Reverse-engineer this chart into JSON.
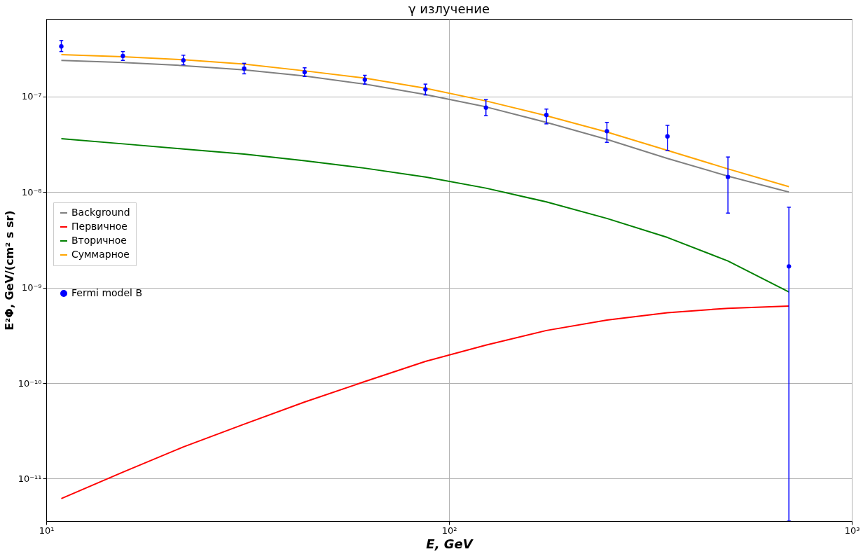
{
  "chart_data": {
    "type": "line",
    "title": "γ излучение",
    "xlabel": "E, GeV",
    "ylabel": "E²Φ, GeV/(cm² s sr)",
    "log": "xy",
    "grid": true,
    "legend": "left",
    "line_style": "solid",
    "xlim": [
      10,
      1000
    ],
    "xticks": [
      {
        "value": 10,
        "label": "10¹"
      },
      {
        "value": 100,
        "label": "10²"
      },
      {
        "value": 1000,
        "label": "10³"
      }
    ],
    "ylim": [
      3.6e-12,
      6.5e-07
    ],
    "yticks": [
      {
        "value": 1e-11,
        "label": "10⁻¹¹"
      },
      {
        "value": 1e-10,
        "label": "10⁻¹⁰"
      },
      {
        "value": 1e-09,
        "label": "10⁻⁹"
      },
      {
        "value": 1e-08,
        "label": "10⁻⁸"
      },
      {
        "value": 1e-07,
        "label": "10⁻⁷"
      }
    ],
    "x": [
      10.9,
      15.5,
      21.9,
      31.0,
      43.8,
      61.8,
      87.4,
      123.5,
      174.5,
      246.6,
      348.6,
      492.6,
      698
    ],
    "series": [
      {
        "name": "Background",
        "color": "#808080",
        "values": [
          2.39e-07,
          2.27e-07,
          2.11e-07,
          1.9e-07,
          1.64e-07,
          1.35e-07,
          1.05e-07,
          7.8e-08,
          5.37e-08,
          3.56e-08,
          2.25e-08,
          1.47e-08,
          1e-08
        ]
      },
      {
        "name": "Первичное",
        "color": "#ff0000",
        "values": [
          6.2e-12,
          1.17e-11,
          2.15e-11,
          3.72e-11,
          6.35e-11,
          1.04e-10,
          1.69e-10,
          2.5e-10,
          3.56e-10,
          4.57e-10,
          5.46e-10,
          6.08e-10,
          6.41e-10
        ]
      },
      {
        "name": "Вторичное",
        "color": "#008000",
        "values": [
          3.63e-08,
          3.2e-08,
          2.83e-08,
          2.5e-08,
          2.13e-08,
          1.78e-08,
          1.44e-08,
          1.1e-08,
          7.9e-09,
          5.3e-09,
          3.35e-09,
          1.9e-09,
          9e-10
        ]
      },
      {
        "name": "Суммарное",
        "color": "#ffa500",
        "values": [
          2.75e-07,
          2.61e-07,
          2.43e-07,
          2.19e-07,
          1.86e-07,
          1.56e-07,
          1.22e-07,
          9e-08,
          6.3e-08,
          4.26e-08,
          2.73e-08,
          1.75e-08,
          1.14e-08
        ]
      },
      {
        "name": "Fermi model B",
        "type": "scatter",
        "marker": "circle",
        "color": "#0000ff",
        "values": [
          3.35e-07,
          2.66e-07,
          2.39e-07,
          1.96e-07,
          1.8e-07,
          1.5e-07,
          1.19e-07,
          7.66e-08,
          6.41e-08,
          4.34e-08,
          3.83e-08,
          1.44e-08,
          1.67e-09
        ],
        "errors": [
          [
            2.96e-07,
            3.86e-07
          ],
          [
            2.39e-07,
            2.96e-07
          ],
          [
            2.15e-07,
            2.71e-07
          ],
          [
            1.73e-07,
            2.23e-07
          ],
          [
            1.62e-07,
            2e-07
          ],
          [
            1.35e-07,
            1.67e-07
          ],
          [
            1.04e-07,
            1.35e-07
          ],
          [
            6.3e-08,
            9.3e-08
          ],
          [
            5.18e-08,
            7.4e-08
          ],
          [
            3.32e-08,
            5.37e-08
          ],
          [
            2.73e-08,
            5e-08
          ],
          [
            6.03e-09,
            2.33e-08
          ],
          [
            3.6e-12,
            6.95e-09
          ]
        ]
      }
    ]
  }
}
